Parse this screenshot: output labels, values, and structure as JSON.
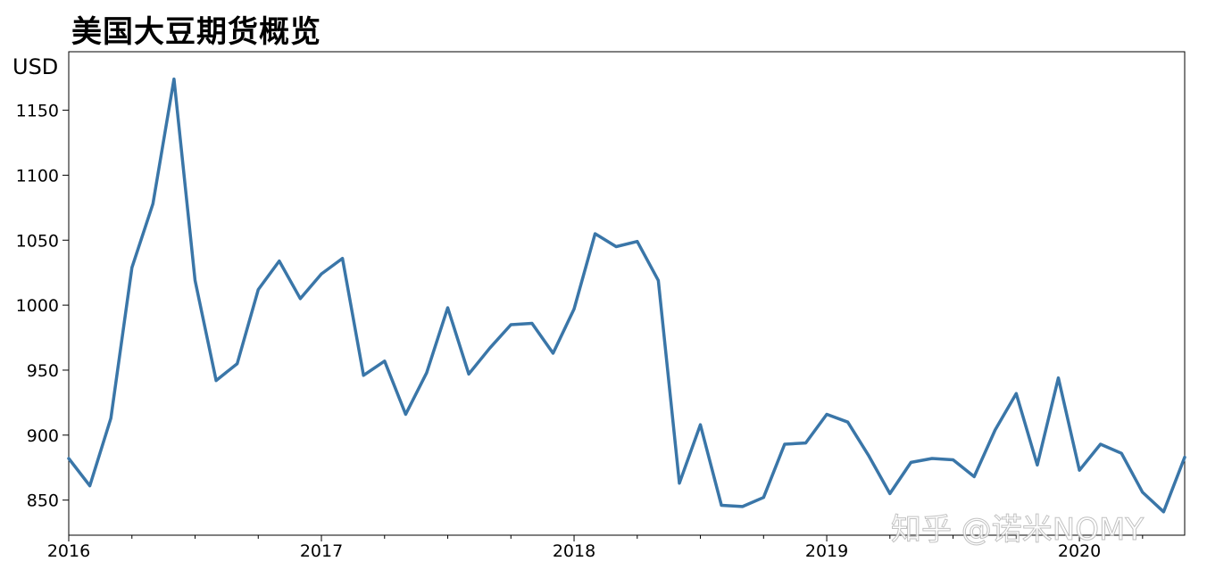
{
  "title": "美国大豆期货概览",
  "watermark": "知乎 @诺米NOMY",
  "chart_data": {
    "type": "line",
    "title": "美国大豆期货概览",
    "ylabel": "USD",
    "xlabel": "",
    "ylim": [
      823,
      1195
    ],
    "xlim": [
      "2016-01",
      "2020-06"
    ],
    "yticks": [
      850,
      900,
      950,
      1000,
      1050,
      1100,
      1150
    ],
    "xticks": [
      "2016",
      "2017",
      "2018",
      "2019",
      "2020"
    ],
    "grid": false,
    "color": "#3a76a8",
    "x": [
      "2016-01",
      "2016-02",
      "2016-03",
      "2016-04",
      "2016-05",
      "2016-06",
      "2016-07",
      "2016-08",
      "2016-09",
      "2016-10",
      "2016-11",
      "2016-12",
      "2017-01",
      "2017-02",
      "2017-03",
      "2017-04",
      "2017-05",
      "2017-06",
      "2017-07",
      "2017-08",
      "2017-09",
      "2017-10",
      "2017-11",
      "2017-12",
      "2018-01",
      "2018-02",
      "2018-03",
      "2018-04",
      "2018-05",
      "2018-06",
      "2018-07",
      "2018-08",
      "2018-09",
      "2018-10",
      "2018-11",
      "2018-12",
      "2019-01",
      "2019-02",
      "2019-03",
      "2019-04",
      "2019-05",
      "2019-06",
      "2019-07",
      "2019-08",
      "2019-09",
      "2019-10",
      "2019-11",
      "2019-12",
      "2020-01",
      "2020-02",
      "2020-03",
      "2020-04",
      "2020-05",
      "2020-06"
    ],
    "y": [
      882,
      861,
      913,
      1029,
      1078,
      1174,
      1019,
      942,
      955,
      1012,
      1034,
      1005,
      1024,
      1036,
      946,
      957,
      916,
      948,
      998,
      947,
      967,
      985,
      986,
      963,
      997,
      1055,
      1045,
      1049,
      1019,
      863,
      908,
      846,
      845,
      852,
      893,
      894,
      916,
      910,
      884,
      855,
      879,
      882,
      881,
      868,
      904,
      932,
      877,
      944,
      873,
      893,
      886,
      856,
      841,
      883
    ]
  }
}
